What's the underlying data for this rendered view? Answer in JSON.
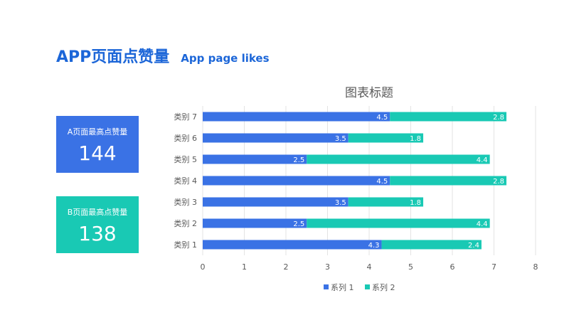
{
  "header": {
    "title": "APP页面点赞量",
    "subtitle": "App page likes"
  },
  "kpis": [
    {
      "label": "A页面最高点赞量",
      "value": "144",
      "color": "#3a72e5"
    },
    {
      "label": "B页面最高点赞量",
      "value": "138",
      "color": "#19c9b4"
    }
  ],
  "chart_data": {
    "type": "bar",
    "orientation": "horizontal",
    "stacked": true,
    "title": "图表标题",
    "categories": [
      "类别 1",
      "类别 2",
      "类别 3",
      "类别 4",
      "类别 5",
      "类别 6",
      "类别 7"
    ],
    "series": [
      {
        "name": "系列 1",
        "values": [
          4.3,
          2.5,
          3.5,
          4.5,
          2.5,
          3.5,
          4.5
        ],
        "color": "#3a72e5"
      },
      {
        "name": "系列 2",
        "values": [
          2.4,
          4.4,
          1.8,
          2.8,
          4.4,
          1.8,
          2.8
        ],
        "color": "#19c9b4"
      }
    ],
    "xlim": [
      0,
      8
    ],
    "xticks": [
      0,
      1,
      2,
      3,
      4,
      5,
      6,
      7,
      8
    ],
    "grid": "vertical",
    "legend": "bottom",
    "data_labels": true
  }
}
